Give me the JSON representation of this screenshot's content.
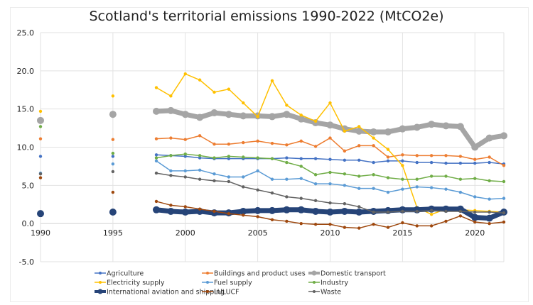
{
  "chart_data": {
    "type": "line",
    "title": "Scotland's territorial emissions 1990-2022 (MtCO2e)",
    "xlabel": "",
    "ylabel": "",
    "ylim": [
      -5,
      25
    ],
    "xlim": [
      1990,
      2022
    ],
    "yticks": [
      "25.0",
      "20.0",
      "15.0",
      "10.0",
      "5.0",
      "0.0",
      "-5.0"
    ],
    "ytick_values": [
      25,
      20,
      15,
      10,
      5,
      0,
      -5
    ],
    "xticks": [
      "1990",
      "1995",
      "2000",
      "2005",
      "2010",
      "2015",
      "2020"
    ],
    "xtick_values": [
      1990,
      1995,
      2000,
      2005,
      2010,
      2015,
      2020
    ],
    "grid": true,
    "legend_position": "bottom",
    "x": [
      1990,
      1995,
      1998,
      1999,
      2000,
      2001,
      2002,
      2003,
      2004,
      2005,
      2006,
      2007,
      2008,
      2009,
      2010,
      2011,
      2012,
      2013,
      2014,
      2015,
      2016,
      2017,
      2018,
      2019,
      2020,
      2021,
      2022
    ],
    "series": [
      {
        "name": "Agriculture",
        "color": "#4472c4",
        "width": 1.5,
        "marker": 2.2,
        "values": [
          8.8,
          8.8,
          9.0,
          8.9,
          8.8,
          8.6,
          8.5,
          8.5,
          8.5,
          8.5,
          8.5,
          8.6,
          8.5,
          8.5,
          8.4,
          8.3,
          8.3,
          8.0,
          8.2,
          8.2,
          8.0,
          8.0,
          7.9,
          7.9,
          7.9,
          8.0,
          7.8
        ]
      },
      {
        "name": "Buildings and product uses",
        "color": "#ed7d31",
        "width": 1.5,
        "marker": 2.2,
        "values": [
          11.1,
          11.0,
          11.1,
          11.2,
          11.0,
          11.5,
          10.4,
          10.4,
          10.6,
          10.8,
          10.5,
          10.3,
          10.8,
          10.1,
          11.2,
          9.5,
          10.2,
          10.2,
          8.7,
          9.0,
          8.9,
          8.9,
          8.9,
          8.8,
          8.4,
          8.7,
          7.6
        ]
      },
      {
        "name": "Domestic transport",
        "color": "#a5a5a5",
        "width": 7,
        "marker": 5,
        "values": [
          13.5,
          14.3,
          14.7,
          14.8,
          14.3,
          13.9,
          14.5,
          14.3,
          14.1,
          14.1,
          14.0,
          14.3,
          13.7,
          13.2,
          12.9,
          12.4,
          12.1,
          12.0,
          12.0,
          12.4,
          12.6,
          13.0,
          12.8,
          12.7,
          10.0,
          11.2,
          11.5
        ]
      },
      {
        "name": "Electricity supply",
        "color": "#ffc000",
        "width": 1.5,
        "marker": 2.2,
        "values": [
          14.7,
          16.7,
          17.8,
          16.7,
          19.6,
          18.8,
          17.2,
          17.6,
          15.8,
          14.0,
          18.7,
          15.5,
          14.2,
          13.4,
          15.8,
          12.1,
          12.7,
          11.2,
          9.7,
          7.6,
          2.1,
          1.2,
          1.9,
          1.8,
          1.7,
          1.6,
          1.5
        ]
      },
      {
        "name": "Fuel supply",
        "color": "#5b9bd5",
        "width": 1.5,
        "marker": 2.2,
        "values": [
          6.6,
          7.8,
          8.2,
          6.9,
          6.9,
          7.0,
          6.5,
          6.1,
          6.1,
          6.9,
          5.8,
          5.8,
          5.9,
          5.2,
          5.2,
          5.0,
          4.6,
          4.6,
          4.1,
          4.5,
          4.8,
          4.7,
          4.5,
          4.1,
          3.5,
          3.2,
          3.3
        ]
      },
      {
        "name": "Industry",
        "color": "#70ad47",
        "width": 1.5,
        "marker": 2.2,
        "values": [
          12.7,
          9.2,
          8.6,
          8.9,
          9.1,
          8.9,
          8.6,
          8.8,
          8.7,
          8.6,
          8.5,
          8.0,
          7.5,
          6.4,
          6.7,
          6.5,
          6.2,
          6.4,
          6.0,
          5.8,
          5.8,
          6.2,
          6.2,
          5.8,
          5.9,
          5.6,
          5.5
        ]
      },
      {
        "name": "International aviation and shipping",
        "color": "#264478",
        "width": 7,
        "marker": 5,
        "values": [
          1.3,
          1.5,
          1.8,
          1.6,
          1.5,
          1.6,
          1.4,
          1.4,
          1.6,
          1.7,
          1.7,
          1.8,
          1.8,
          1.6,
          1.5,
          1.6,
          1.5,
          1.6,
          1.7,
          1.8,
          1.8,
          1.9,
          1.9,
          1.9,
          0.8,
          0.7,
          1.5
        ]
      },
      {
        "name": "LULUCF",
        "color": "#9e480e",
        "width": 1.5,
        "marker": 2.2,
        "values": [
          6.0,
          4.1,
          2.9,
          2.4,
          2.2,
          1.9,
          1.6,
          1.3,
          1.1,
          0.9,
          0.5,
          0.3,
          0.0,
          -0.1,
          -0.1,
          -0.5,
          -0.6,
          -0.1,
          -0.5,
          0.1,
          -0.3,
          -0.3,
          0.3,
          1.0,
          0.2,
          0.0,
          0.2
        ]
      },
      {
        "name": "Waste",
        "color": "#636363",
        "width": 1.5,
        "marker": 2.2,
        "values": [
          6.5,
          6.8,
          6.6,
          6.3,
          6.1,
          5.8,
          5.6,
          5.5,
          4.8,
          4.4,
          4.0,
          3.5,
          3.3,
          3.0,
          2.7,
          2.6,
          2.2,
          1.5,
          1.5,
          1.6,
          1.6,
          1.7,
          1.6,
          1.6,
          1.5,
          1.5,
          1.4
        ]
      }
    ],
    "gap_after_index": 1
  }
}
